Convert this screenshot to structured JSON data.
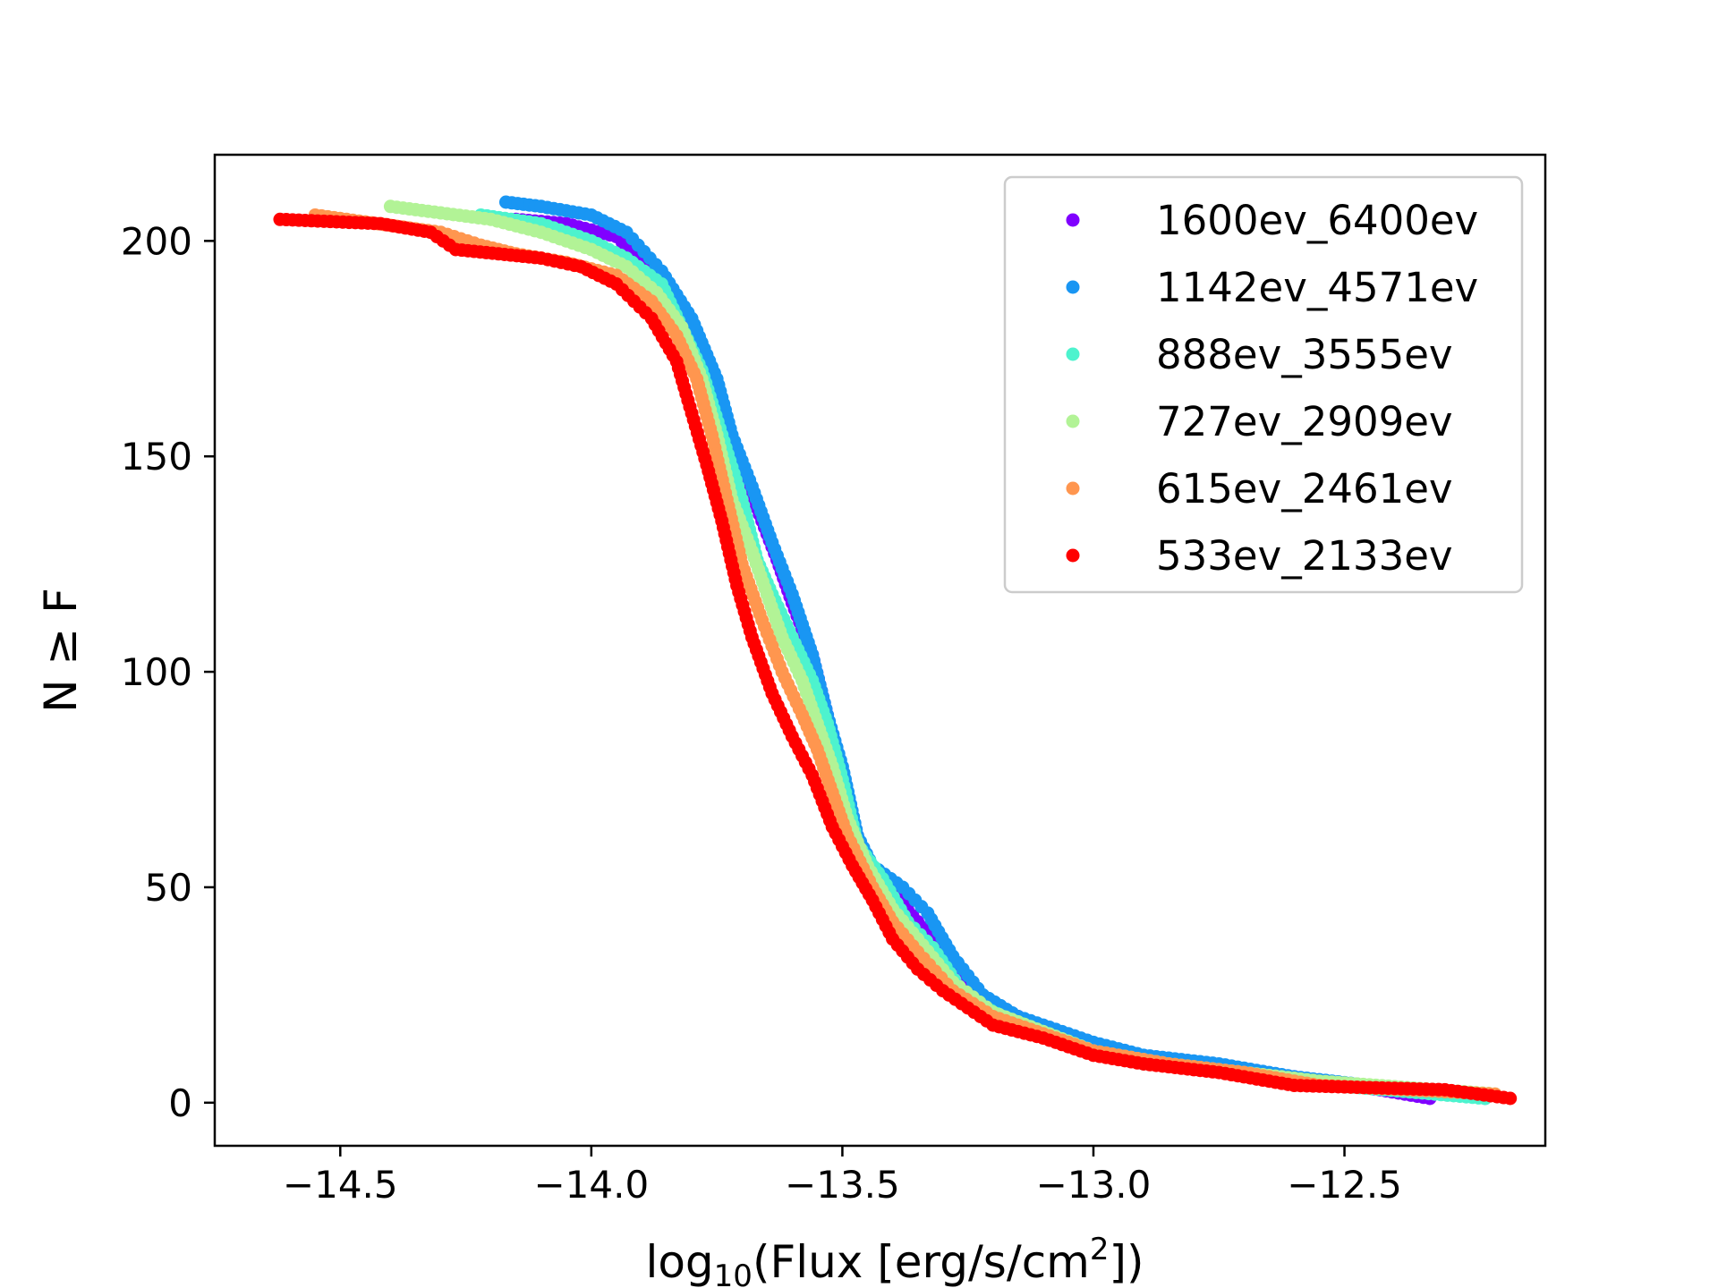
{
  "chart_data": {
    "type": "scatter",
    "title": "",
    "xlabel_parts": {
      "pre": "log",
      "sub": "10",
      "mid": "(Flux [erg/s/cm",
      "sup": "2",
      "post": "])"
    },
    "ylabel": "N ≥ F",
    "xlim": [
      -14.75,
      -12.1
    ],
    "ylim": [
      -10,
      220
    ],
    "xticks": [
      -14.5,
      -14.0,
      -13.5,
      -13.0,
      -12.5
    ],
    "xtick_labels": [
      "−14.5",
      "−14.0",
      "−13.5",
      "−13.0",
      "−12.5"
    ],
    "yticks": [
      0,
      50,
      100,
      150,
      200
    ],
    "ytick_labels": [
      "0",
      "50",
      "100",
      "150",
      "200"
    ],
    "legend_position": "top-right",
    "series": [
      {
        "name": "1600ev_6400ev",
        "color": "#8000ff",
        "anchors": [
          [
            -14.15,
            205
          ],
          [
            -14.05,
            204
          ],
          [
            -13.95,
            201
          ],
          [
            -13.88,
            193
          ],
          [
            -13.82,
            183
          ],
          [
            -13.78,
            172
          ],
          [
            -13.72,
            150
          ],
          [
            -13.67,
            138
          ],
          [
            -13.63,
            126
          ],
          [
            -13.6,
            116
          ],
          [
            -13.56,
            104
          ],
          [
            -13.53,
            90
          ],
          [
            -13.5,
            75
          ],
          [
            -13.47,
            62
          ],
          [
            -13.45,
            55
          ],
          [
            -13.4,
            49
          ],
          [
            -13.35,
            42
          ],
          [
            -13.3,
            34
          ],
          [
            -13.25,
            27
          ],
          [
            -13.2,
            23
          ],
          [
            -13.1,
            17
          ],
          [
            -13.0,
            13
          ],
          [
            -12.9,
            10
          ],
          [
            -12.8,
            9
          ],
          [
            -12.6,
            6
          ],
          [
            -12.43,
            3
          ],
          [
            -12.33,
            1
          ]
        ]
      },
      {
        "name": "1142ev_4571ev",
        "color": "#1996f3",
        "anchors": [
          [
            -14.17,
            209
          ],
          [
            -14.1,
            208
          ],
          [
            -14.0,
            206
          ],
          [
            -13.93,
            202
          ],
          [
            -13.86,
            193
          ],
          [
            -13.8,
            182
          ],
          [
            -13.75,
            168
          ],
          [
            -13.72,
            155
          ],
          [
            -13.68,
            143
          ],
          [
            -13.64,
            130
          ],
          [
            -13.6,
            118
          ],
          [
            -13.56,
            104
          ],
          [
            -13.53,
            90
          ],
          [
            -13.5,
            78
          ],
          [
            -13.47,
            62
          ],
          [
            -13.44,
            55
          ],
          [
            -13.38,
            50
          ],
          [
            -13.33,
            44
          ],
          [
            -13.28,
            34
          ],
          [
            -13.22,
            25
          ],
          [
            -13.15,
            20
          ],
          [
            -13.0,
            14
          ],
          [
            -12.9,
            11
          ],
          [
            -12.75,
            9
          ],
          [
            -12.6,
            6
          ],
          [
            -12.45,
            4
          ],
          [
            -12.34,
            3
          ],
          [
            -12.22,
            1
          ]
        ]
      },
      {
        "name": "888ev_3555ev",
        "color": "#4df3ce",
        "anchors": [
          [
            -14.22,
            206
          ],
          [
            -14.1,
            204
          ],
          [
            -14.0,
            200
          ],
          [
            -13.93,
            196
          ],
          [
            -13.86,
            190
          ],
          [
            -13.82,
            180
          ],
          [
            -13.78,
            170
          ],
          [
            -13.74,
            155
          ],
          [
            -13.7,
            140
          ],
          [
            -13.67,
            126
          ],
          [
            -13.64,
            118
          ],
          [
            -13.6,
            108
          ],
          [
            -13.56,
            98
          ],
          [
            -13.53,
            88
          ],
          [
            -13.5,
            75
          ],
          [
            -13.47,
            60
          ],
          [
            -13.42,
            52
          ],
          [
            -13.37,
            42
          ],
          [
            -13.32,
            36
          ],
          [
            -13.25,
            24
          ],
          [
            -13.18,
            20
          ],
          [
            -13.0,
            12
          ],
          [
            -12.9,
            9
          ],
          [
            -12.8,
            8
          ],
          [
            -12.6,
            5
          ],
          [
            -12.52,
            4
          ],
          [
            -12.22,
            1
          ]
        ]
      },
      {
        "name": "727ev_2909ev",
        "color": "#b2f396",
        "anchors": [
          [
            -14.4,
            208
          ],
          [
            -14.2,
            205
          ],
          [
            -14.1,
            202
          ],
          [
            -14.0,
            198
          ],
          [
            -13.93,
            194
          ],
          [
            -13.87,
            188
          ],
          [
            -13.82,
            180
          ],
          [
            -13.78,
            168
          ],
          [
            -13.75,
            155
          ],
          [
            -13.72,
            140
          ],
          [
            -13.68,
            128
          ],
          [
            -13.65,
            118
          ],
          [
            -13.62,
            108
          ],
          [
            -13.58,
            98
          ],
          [
            -13.55,
            88
          ],
          [
            -13.52,
            78
          ],
          [
            -13.49,
            66
          ],
          [
            -13.45,
            55
          ],
          [
            -13.4,
            45
          ],
          [
            -13.35,
            38
          ],
          [
            -13.28,
            28
          ],
          [
            -13.2,
            21
          ],
          [
            -13.0,
            12
          ],
          [
            -12.85,
            9
          ],
          [
            -12.7,
            7
          ],
          [
            -12.55,
            5
          ],
          [
            -12.2,
            2
          ]
        ]
      },
      {
        "name": "615ev_2461ev",
        "color": "#ff964f",
        "anchors": [
          [
            -14.55,
            206
          ],
          [
            -14.3,
            202
          ],
          [
            -14.22,
            199
          ],
          [
            -14.15,
            197
          ],
          [
            -14.05,
            195
          ],
          [
            -13.95,
            192
          ],
          [
            -13.88,
            186
          ],
          [
            -13.83,
            178
          ],
          [
            -13.79,
            168
          ],
          [
            -13.76,
            155
          ],
          [
            -13.73,
            140
          ],
          [
            -13.7,
            125
          ],
          [
            -13.66,
            112
          ],
          [
            -13.62,
            100
          ],
          [
            -13.58,
            90
          ],
          [
            -13.55,
            82
          ],
          [
            -13.52,
            72
          ],
          [
            -13.49,
            62
          ],
          [
            -13.44,
            50
          ],
          [
            -13.4,
            42
          ],
          [
            -13.35,
            35
          ],
          [
            -13.28,
            26
          ],
          [
            -13.2,
            20
          ],
          [
            -13.1,
            16
          ],
          [
            -13.0,
            12
          ],
          [
            -12.85,
            9
          ],
          [
            -12.7,
            7
          ],
          [
            -12.55,
            4
          ],
          [
            -12.2,
            2
          ]
        ]
      },
      {
        "name": "533ev_2133ev",
        "color": "#ff0000",
        "anchors": [
          [
            -14.62,
            205
          ],
          [
            -14.42,
            204
          ],
          [
            -14.32,
            202
          ],
          [
            -14.27,
            198
          ],
          [
            -14.1,
            196
          ],
          [
            -14.02,
            194
          ],
          [
            -13.95,
            190
          ],
          [
            -13.88,
            182
          ],
          [
            -13.83,
            172
          ],
          [
            -13.8,
            160
          ],
          [
            -13.77,
            148
          ],
          [
            -13.74,
            135
          ],
          [
            -13.71,
            120
          ],
          [
            -13.68,
            108
          ],
          [
            -13.64,
            95
          ],
          [
            -13.6,
            85
          ],
          [
            -13.56,
            76
          ],
          [
            -13.52,
            64
          ],
          [
            -13.48,
            55
          ],
          [
            -13.44,
            47
          ],
          [
            -13.4,
            38
          ],
          [
            -13.35,
            31
          ],
          [
            -13.3,
            26
          ],
          [
            -13.25,
            22
          ],
          [
            -13.2,
            18
          ],
          [
            -13.1,
            15
          ],
          [
            -13.0,
            11
          ],
          [
            -12.9,
            9
          ],
          [
            -12.75,
            7
          ],
          [
            -12.6,
            4
          ],
          [
            -12.3,
            3
          ],
          [
            -12.17,
            1
          ]
        ]
      }
    ]
  }
}
